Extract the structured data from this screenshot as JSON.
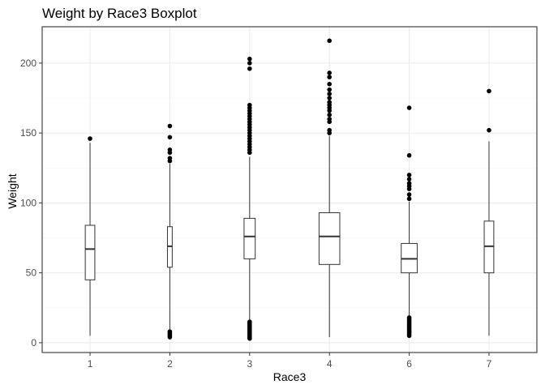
{
  "chart_data": {
    "type": "boxplot",
    "title": "Weight by Race3 Boxplot",
    "xlabel": "Race3",
    "ylabel": "Weight",
    "ylim": [
      -7,
      226
    ],
    "yticks": [
      0,
      50,
      100,
      150,
      200
    ],
    "grid": true,
    "legend": "none",
    "categories": [
      "1",
      "2",
      "3",
      "4",
      "6",
      "7"
    ],
    "boxes": [
      {
        "category": "1",
        "q1": 45,
        "median": 67,
        "q3": 84,
        "whisker_low": 5,
        "whisker_high": 143,
        "box_width": 0.12,
        "outliers": [
          146
        ]
      },
      {
        "category": "2",
        "q1": 54,
        "median": 69,
        "q3": 83,
        "whisker_low": 9,
        "whisker_high": 128,
        "box_width": 0.06,
        "outliers": [
          130,
          132,
          136,
          138,
          147,
          155,
          4,
          5,
          6,
          7,
          8
        ]
      },
      {
        "category": "3",
        "q1": 60,
        "median": 76,
        "q3": 89,
        "whisker_low": 16,
        "whisker_high": 133,
        "box_width": 0.14,
        "outliers": [
          136,
          138,
          140,
          142,
          144,
          146,
          148,
          150,
          152,
          154,
          156,
          158,
          160,
          162,
          164,
          166,
          168,
          170,
          196,
          200,
          203,
          3,
          4,
          5,
          6,
          7,
          8,
          9,
          10,
          11,
          12,
          13,
          14,
          15
        ]
      },
      {
        "category": "4",
        "q1": 56,
        "median": 76,
        "q3": 93,
        "whisker_low": 4,
        "whisker_high": 148,
        "box_width": 0.26,
        "outliers": [
          150,
          152,
          158,
          160,
          163,
          166,
          168,
          170,
          172,
          175,
          178,
          181,
          185,
          190,
          193,
          216
        ]
      },
      {
        "category": "6",
        "q1": 50,
        "median": 60,
        "q3": 71,
        "whisker_low": 19,
        "whisker_high": 101,
        "box_width": 0.2,
        "outliers": [
          103,
          106,
          110,
          112,
          114,
          117,
          120,
          134,
          168,
          5,
          6,
          7,
          8,
          9,
          10,
          11,
          12,
          13,
          14,
          15,
          16,
          17,
          18
        ]
      },
      {
        "category": "7",
        "q1": 50,
        "median": 69,
        "q3": 87,
        "whisker_low": 5,
        "whisker_high": 144,
        "box_width": 0.12,
        "outliers": [
          152,
          180
        ]
      }
    ]
  },
  "colors": {
    "background": "#ffffff",
    "panel_border": "#333333",
    "grid_major": "#ebebeb",
    "grid_minor": "#f5f5f5",
    "box_stroke": "#333333",
    "point": "#000000",
    "tick_text": "#4d4d4d"
  }
}
